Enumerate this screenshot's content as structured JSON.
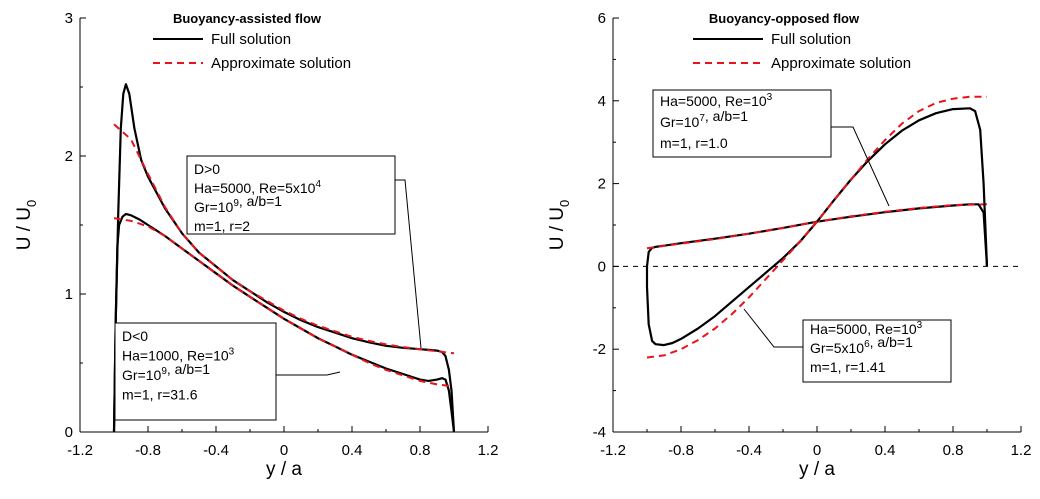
{
  "chart_data": [
    {
      "type": "line",
      "title": "Buoyancy-assisted flow",
      "xlabel": "y / a",
      "ylabel": "U / U0",
      "ylabel_parts": [
        "U / U",
        "0"
      ],
      "xlim": [
        -1.2,
        1.2
      ],
      "ylim": [
        0,
        3
      ],
      "xticks": [
        "-1.2",
        "-0.8",
        "-0.4",
        "0",
        "0.4",
        "0.8",
        "1.2"
      ],
      "yticks": [
        "0",
        "1",
        "2",
        "3"
      ],
      "grid": false,
      "legend": {
        "position": "top-center",
        "entries": [
          {
            "label": "Full solution",
            "color": "#000000",
            "style": "solid"
          },
          {
            "label": "Approximate solution",
            "color": "#e8141c",
            "style": "dashed"
          }
        ]
      },
      "series": [
        {
          "legend": "Full solution",
          "case": "D>0",
          "x": [
            -1.0,
            -0.99,
            -0.975,
            -0.96,
            -0.945,
            -0.93,
            -0.91,
            -0.88,
            -0.84,
            -0.8,
            -0.7,
            -0.6,
            -0.5,
            -0.4,
            -0.3,
            -0.2,
            -0.1,
            0.0,
            0.1,
            0.2,
            0.3,
            0.4,
            0.5,
            0.6,
            0.7,
            0.8,
            0.85,
            0.9,
            0.93,
            0.95,
            0.97,
            0.985,
            1.0
          ],
          "y": [
            0.0,
            0.8,
            1.6,
            2.2,
            2.45,
            2.52,
            2.45,
            2.2,
            1.97,
            1.85,
            1.62,
            1.44,
            1.3,
            1.2,
            1.1,
            1.02,
            0.94,
            0.87,
            0.81,
            0.76,
            0.72,
            0.68,
            0.65,
            0.625,
            0.61,
            0.6,
            0.595,
            0.59,
            0.58,
            0.55,
            0.45,
            0.3,
            0.0
          ]
        },
        {
          "legend": "Approximate solution",
          "case": "D>0",
          "x": [
            -1.0,
            -0.9,
            -0.8,
            -0.7,
            -0.6,
            -0.5,
            -0.4,
            -0.3,
            -0.2,
            -0.1,
            0.0,
            0.1,
            0.2,
            0.3,
            0.4,
            0.5,
            0.6,
            0.7,
            0.8,
            0.9,
            1.0
          ],
          "y": [
            2.23,
            2.12,
            1.87,
            1.63,
            1.44,
            1.3,
            1.2,
            1.1,
            1.02,
            0.95,
            0.88,
            0.82,
            0.77,
            0.73,
            0.69,
            0.66,
            0.635,
            0.615,
            0.6,
            0.585,
            0.57
          ]
        },
        {
          "legend": "Full solution",
          "case": "D<0",
          "x": [
            -1.0,
            -0.99,
            -0.98,
            -0.97,
            -0.95,
            -0.93,
            -0.9,
            -0.85,
            -0.8,
            -0.7,
            -0.6,
            -0.5,
            -0.4,
            -0.3,
            -0.2,
            -0.1,
            0.0,
            0.1,
            0.2,
            0.3,
            0.4,
            0.5,
            0.6,
            0.7,
            0.8,
            0.85,
            0.9,
            0.93,
            0.95,
            0.97,
            0.985,
            1.0
          ],
          "y": [
            0.0,
            0.8,
            1.35,
            1.5,
            1.56,
            1.58,
            1.57,
            1.54,
            1.5,
            1.42,
            1.33,
            1.24,
            1.15,
            1.06,
            0.98,
            0.9,
            0.82,
            0.75,
            0.68,
            0.62,
            0.56,
            0.51,
            0.46,
            0.42,
            0.38,
            0.37,
            0.38,
            0.39,
            0.38,
            0.3,
            0.15,
            0.0
          ]
        },
        {
          "legend": "Approximate solution",
          "case": "D<0",
          "x": [
            -1.0,
            -0.9,
            -0.8,
            -0.7,
            -0.6,
            -0.5,
            -0.4,
            -0.3,
            -0.2,
            -0.1,
            0.0,
            0.1,
            0.2,
            0.3,
            0.4,
            0.5,
            0.6,
            0.7,
            0.8,
            0.9,
            1.0
          ],
          "y": [
            1.55,
            1.53,
            1.49,
            1.42,
            1.33,
            1.24,
            1.15,
            1.06,
            0.98,
            0.9,
            0.82,
            0.75,
            0.68,
            0.62,
            0.56,
            0.5,
            0.45,
            0.41,
            0.37,
            0.345,
            0.33
          ]
        }
      ],
      "annotations": [
        {
          "lines": [
            [
              "D>0"
            ],
            [
              "Ha=5000, Re=5x10",
              {
                "sup": "4"
              }
            ],
            [
              "Gr=10",
              {
                "sup": "9"
              },
              ", a/b=1"
            ],
            [
              "m=1, r=2"
            ]
          ]
        },
        {
          "lines": [
            [
              "D<0"
            ],
            [
              "Ha=1000, Re=10",
              {
                "sup": "3"
              }
            ],
            [
              "Gr=10",
              {
                "sup": "9"
              },
              ", a/b=1"
            ],
            [
              "m=1, r=31.6"
            ]
          ]
        }
      ]
    },
    {
      "type": "line",
      "title": "Buoyancy-opposed flow",
      "xlabel": "y / a",
      "ylabel": "U / U0",
      "ylabel_parts": [
        "U / U",
        "0"
      ],
      "xlim": [
        -1.2,
        1.2
      ],
      "ylim": [
        -4,
        6
      ],
      "xticks": [
        "-1.2",
        "-0.8",
        "-0.4",
        "0",
        "0.4",
        "0.8",
        "1.2"
      ],
      "yticks": [
        "-4",
        "-2",
        "0",
        "2",
        "4",
        "6"
      ],
      "grid": false,
      "reference_line": {
        "y": 0,
        "style": "dashed"
      },
      "legend": {
        "position": "top-center",
        "entries": [
          {
            "label": "Full solution",
            "color": "#000000",
            "style": "solid"
          },
          {
            "label": "Approximate solution",
            "color": "#e8141c",
            "style": "dashed"
          }
        ]
      },
      "series": [
        {
          "legend": "Full solution",
          "case": "Re=10^3, Gr=10^7, r=1.0",
          "x": [
            -1.0,
            -0.99,
            -0.97,
            -0.95,
            -0.9,
            -0.8,
            -0.6,
            -0.4,
            -0.2,
            0.0,
            0.2,
            0.4,
            0.6,
            0.8,
            0.9,
            0.95,
            0.98,
            1.0
          ],
          "y": [
            0.0,
            0.35,
            0.45,
            0.47,
            0.5,
            0.56,
            0.67,
            0.79,
            0.93,
            1.08,
            1.2,
            1.31,
            1.4,
            1.47,
            1.5,
            1.5,
            1.3,
            0.0
          ]
        },
        {
          "legend": "Approximate solution",
          "case": "Re=10^3, Gr=10^7, r=1.0",
          "x": [
            -1.0,
            -0.8,
            -0.6,
            -0.4,
            -0.2,
            0.0,
            0.2,
            0.4,
            0.6,
            0.8,
            1.0
          ],
          "y": [
            0.44,
            0.55,
            0.66,
            0.79,
            0.93,
            1.08,
            1.21,
            1.32,
            1.41,
            1.48,
            1.5
          ]
        },
        {
          "legend": "Full solution",
          "case": "Re=10^3, Gr=5x10^6, r=1.41",
          "x": [
            -1.0,
            -1.0,
            -0.99,
            -0.97,
            -0.95,
            -0.9,
            -0.85,
            -0.8,
            -0.7,
            -0.6,
            -0.5,
            -0.4,
            -0.3,
            -0.2,
            -0.1,
            0.0,
            0.1,
            0.2,
            0.3,
            0.4,
            0.5,
            0.6,
            0.7,
            0.8,
            0.9,
            0.93,
            0.96,
            0.98,
            1.0
          ],
          "y": [
            0.0,
            -0.5,
            -1.4,
            -1.8,
            -1.88,
            -1.9,
            -1.85,
            -1.75,
            -1.5,
            -1.2,
            -0.85,
            -0.5,
            -0.15,
            0.2,
            0.6,
            1.08,
            1.6,
            2.1,
            2.55,
            2.95,
            3.28,
            3.53,
            3.7,
            3.8,
            3.82,
            3.75,
            3.3,
            2.0,
            0.0
          ]
        },
        {
          "legend": "Approximate solution",
          "case": "Re=10^3, Gr=5x10^6, r=1.41",
          "x": [
            -1.0,
            -0.9,
            -0.8,
            -0.7,
            -0.6,
            -0.5,
            -0.4,
            -0.3,
            -0.2,
            -0.1,
            0.0,
            0.1,
            0.2,
            0.3,
            0.4,
            0.5,
            0.6,
            0.7,
            0.8,
            0.9,
            1.0
          ],
          "y": [
            -2.2,
            -2.15,
            -2.0,
            -1.78,
            -1.5,
            -1.15,
            -0.75,
            -0.3,
            0.15,
            0.6,
            1.08,
            1.6,
            2.1,
            2.6,
            3.05,
            3.45,
            3.75,
            3.95,
            4.05,
            4.1,
            4.1
          ]
        }
      ],
      "annotations": [
        {
          "lines": [
            [
              "Ha=5000, Re=10",
              {
                "sup": "3"
              }
            ],
            [
              "Gr=10",
              {
                "sup": "7"
              },
              ", a/b=1"
            ],
            [
              "m=1, r=1.0"
            ]
          ]
        },
        {
          "lines": [
            [
              "Ha=5000, Re=10",
              {
                "sup": "3"
              }
            ],
            [
              "Gr=5x10",
              {
                "sup": "6"
              },
              ", a/b=1"
            ],
            [
              "m=1, r=1.41"
            ]
          ]
        }
      ]
    }
  ]
}
